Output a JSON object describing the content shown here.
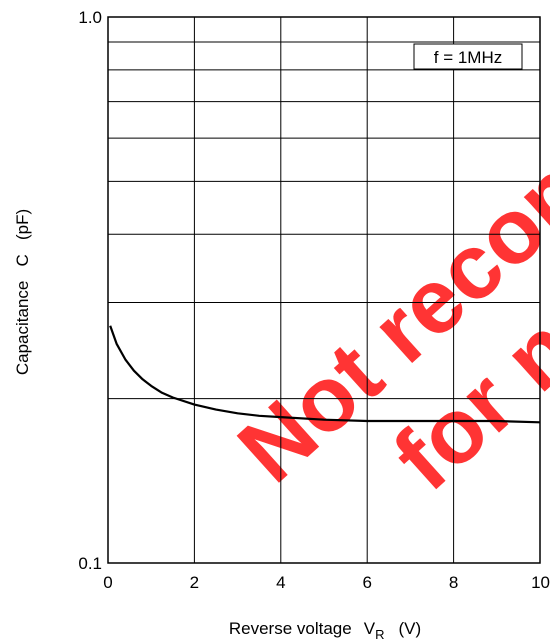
{
  "chart_data": {
    "type": "line",
    "title": "",
    "xlabel": "Reverse voltage",
    "xlabel_symbol": "V",
    "xlabel_subscript": "R",
    "xlabel_unit": "(V)",
    "ylabel": "Capacitance   C   (pF)",
    "xlim": [
      0,
      10
    ],
    "ylim": [
      0.1,
      1.0
    ],
    "yscale": "log",
    "grid": true,
    "x_ticks": [
      "0",
      "2",
      "4",
      "6",
      "8",
      "10"
    ],
    "y_ticks": [
      "0.1",
      "1.0"
    ],
    "annotation": "f = 1MHz",
    "watermark": [
      "Not recommended",
      "for new design"
    ],
    "series": [
      {
        "color": "#000000",
        "x": [
          0.05,
          0.2,
          0.4,
          0.6,
          0.8,
          1.0,
          1.25,
          1.5,
          2.0,
          2.5,
          3.0,
          3.5,
          4.0,
          5.0,
          6.0,
          7.0,
          8.0,
          9.0,
          10.0
        ],
        "y": [
          0.272,
          0.252,
          0.236,
          0.225,
          0.217,
          0.211,
          0.205,
          0.201,
          0.195,
          0.191,
          0.188,
          0.186,
          0.185,
          0.183,
          0.182,
          0.182,
          0.182,
          0.182,
          0.181
        ]
      }
    ]
  }
}
